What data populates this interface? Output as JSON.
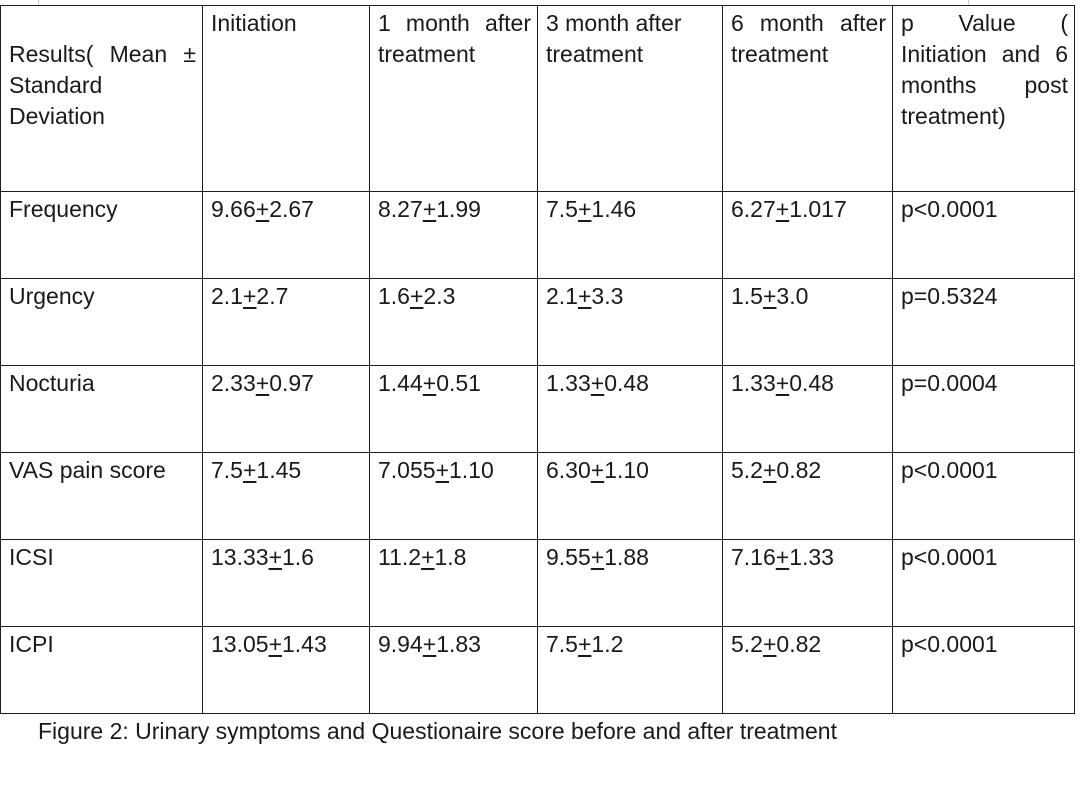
{
  "table": {
    "headers": [
      "Results( Mean ± Standard Deviation",
      "Initiation",
      "1 month after treatment",
      "3 month after treatment",
      "6 month after treatment",
      "p Value ( Initiation and 6 months post treatment)"
    ],
    "rows": [
      {
        "label": "Frequency",
        "values": [
          {
            "mean": "9.66",
            "sd": "2.67"
          },
          {
            "mean": "8.27",
            "sd": "1.99"
          },
          {
            "mean": "7.5",
            "sd": "1.46"
          },
          {
            "mean": "6.27",
            "sd": "1.017"
          }
        ],
        "p_value": "p<0.0001"
      },
      {
        "label": "Urgency",
        "values": [
          {
            "mean": "2.1",
            "sd": "2.7"
          },
          {
            "mean": "1.6",
            "sd": "2.3"
          },
          {
            "mean": "2.1",
            "sd": "3.3"
          },
          {
            "mean": "1.5",
            "sd": "3.0"
          }
        ],
        "p_value": "p=0.5324"
      },
      {
        "label": "Nocturia",
        "values": [
          {
            "mean": "2.33",
            "sd": "0.97"
          },
          {
            "mean": "1.44",
            "sd": "0.51"
          },
          {
            "mean": "1.33",
            "sd": "0.48"
          },
          {
            "mean": "1.33",
            "sd": "0.48"
          }
        ],
        "p_value": "p=0.0004"
      },
      {
        "label": "VAS pain score",
        "values": [
          {
            "mean": "7.5",
            "sd": "1.45"
          },
          {
            "mean": "7.055",
            "sd": "1.10"
          },
          {
            "mean": "6.30",
            "sd": "1.10"
          },
          {
            "mean": "5.2",
            "sd": "0.82"
          }
        ],
        "p_value": "p<0.0001"
      },
      {
        "label": "ICSI",
        "values": [
          {
            "mean": "13.33",
            "sd": "1.6"
          },
          {
            "mean": "11.2",
            "sd": "1.8"
          },
          {
            "mean": "9.55",
            "sd": "1.88"
          },
          {
            "mean": "7.16",
            "sd": "1.33"
          }
        ],
        "p_value": "p<0.0001"
      },
      {
        "label": "ICPI",
        "values": [
          {
            "mean": "13.05",
            "sd": "1.43"
          },
          {
            "mean": "9.94",
            "sd": "1.83"
          },
          {
            "mean": "7.5",
            "sd": "1.2"
          },
          {
            "mean": "5.2",
            "sd": "0.82"
          }
        ],
        "p_value": "p<0.0001"
      }
    ]
  },
  "caption": "Figure 2: Urinary symptoms and Questionaire score before and after treatment"
}
